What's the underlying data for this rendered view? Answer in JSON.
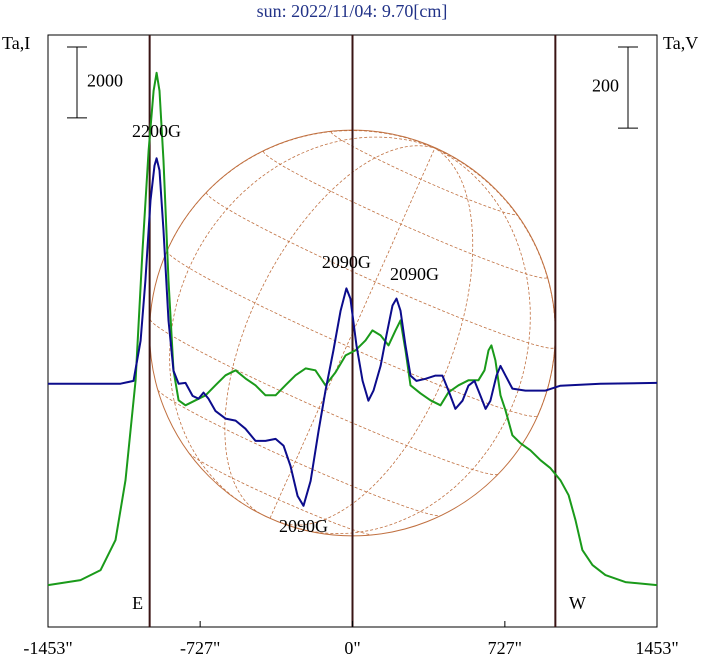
{
  "chart_data": {
    "type": "line",
    "title": "sun: 2022/11/04: 9.70[cm]",
    "ylabel": "Ta,I",
    "y2label": "Ta,V",
    "xlim": [
      -1453,
      1453
    ],
    "xticks": [
      {
        "value": -1453,
        "label": "-1453\""
      },
      {
        "value": -727,
        "label": "-727\""
      },
      {
        "value": 0,
        "label": "0\""
      },
      {
        "value": 727,
        "label": "727\""
      },
      {
        "value": 1453,
        "label": "1453\""
      }
    ],
    "ylim": [
      0,
      16700
    ],
    "y2lim": [
      -600,
      860
    ],
    "scale_bars": [
      {
        "value": 2000,
        "axis": "y"
      },
      {
        "value": 200,
        "axis": "y2"
      }
    ],
    "limbs": [
      -968,
      0,
      968
    ],
    "limb_labels": [
      "E",
      "W"
    ],
    "series": [
      {
        "name": "I",
        "color": "#1a9a1a",
        "axis": "y",
        "x": [
          -1453,
          -1298,
          -1202,
          -1131,
          -1083,
          -1035,
          -1002,
          -973,
          -949,
          -935,
          -921,
          -902,
          -878,
          -854,
          -830,
          -797,
          -749,
          -701,
          -654,
          -606,
          -558,
          -511,
          -463,
          -415,
          -367,
          -320,
          -272,
          -224,
          -177,
          -129,
          -81,
          -33,
          14,
          62,
          95,
          134,
          172,
          205,
          229,
          253,
          277,
          324,
          372,
          420,
          458,
          506,
          553,
          601,
          630,
          649,
          663,
          682,
          706,
          730,
          763,
          802,
          849,
          897,
          945,
          992,
          1031,
          1064,
          1097,
          1145,
          1207,
          1302,
          1453
        ],
        "values": [
          1183,
          1324,
          1606,
          2451,
          4141,
          6958,
          10620,
          13437,
          15127,
          15634,
          15127,
          13155,
          9775,
          7240,
          6395,
          6254,
          6395,
          6535,
          6817,
          7099,
          7240,
          7014,
          6817,
          6535,
          6535,
          6817,
          7099,
          7296,
          7240,
          6817,
          7183,
          7662,
          7803,
          8085,
          8366,
          8226,
          7944,
          8366,
          8648,
          7803,
          6817,
          6592,
          6395,
          6254,
          6620,
          6817,
          6958,
          6958,
          7240,
          7803,
          7944,
          7521,
          6535,
          6113,
          5409,
          5183,
          4986,
          4704,
          4479,
          4141,
          3718,
          3014,
          2169,
          1747,
          1465,
          1268,
          1183
        ]
      },
      {
        "name": "V",
        "color": "#0c0c8c",
        "axis": "y2",
        "x": [
          -1453,
          -1107,
          -1045,
          -1011,
          -988,
          -964,
          -945,
          -935,
          -921,
          -902,
          -878,
          -854,
          -830,
          -797,
          -763,
          -735,
          -711,
          -687,
          -654,
          -606,
          -558,
          -511,
          -463,
          -415,
          -367,
          -329,
          -296,
          -262,
          -234,
          -200,
          -162,
          -129,
          -91,
          -57,
          -29,
          -10,
          19,
          48,
          76,
          100,
          134,
          162,
          191,
          210,
          229,
          253,
          277,
          305,
          348,
          396,
          429,
          458,
          491,
          525,
          553,
          582,
          611,
          635,
          658,
          687,
          706,
          730,
          763,
          825,
          921,
          992,
          1183,
          1453
        ],
        "values": [
          0,
          0,
          7,
          106,
          254,
          452,
          538,
          556,
          526,
          378,
          156,
          32,
          0,
          2,
          -30,
          -37,
          -22,
          -37,
          -67,
          -86,
          -91,
          -111,
          -141,
          -141,
          -136,
          -153,
          -203,
          -277,
          -301,
          -240,
          -116,
          -17,
          82,
          180,
          235,
          210,
          94,
          7,
          -42,
          -17,
          44,
          119,
          193,
          210,
          180,
          94,
          20,
          7,
          12,
          20,
          20,
          -17,
          -62,
          -42,
          -5,
          7,
          -30,
          -62,
          -42,
          20,
          44,
          20,
          -12,
          -17,
          -17,
          -5,
          0,
          2
        ]
      }
    ],
    "annotations": [
      {
        "text": "2200G",
        "x": -935
      },
      {
        "text": "2090G",
        "x": -29
      },
      {
        "text": "2090G",
        "x": 210
      },
      {
        "text": "2090G",
        "x": -234
      }
    ]
  }
}
